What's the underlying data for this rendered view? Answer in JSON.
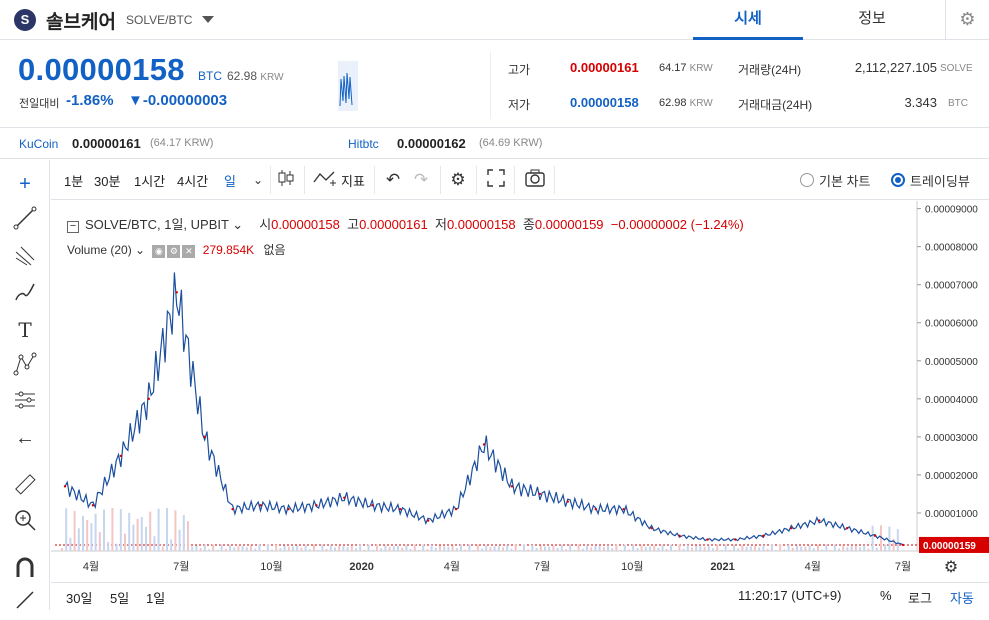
{
  "header": {
    "logo_letter": "S",
    "coin_name": "솔브케어",
    "pair": "SOLVE/BTC",
    "tabs": [
      "시세",
      "정보"
    ]
  },
  "price": {
    "current": "0.00000158",
    "unit": "BTC",
    "krw": "62.98",
    "krw_unit": "KRW",
    "change_label": "전일대비",
    "change_pct": "-1.86%",
    "change_abs": "▼-0.00000003"
  },
  "stats": {
    "high_label": "고가",
    "high_value": "0.00000161",
    "high_krw": "64.17",
    "low_label": "저가",
    "low_value": "0.00000158",
    "low_krw": "62.98",
    "krw_unit": "KRW",
    "volume_label": "거래량(24H)",
    "volume_value": "2,112,227.105",
    "volume_unit": "SOLVE",
    "amount_label": "거래대금(24H)",
    "amount_value": "3.343",
    "amount_unit": "BTC"
  },
  "exchanges": [
    {
      "name": "KuCoin",
      "price": "0.00000161",
      "krw": "(64.17 KRW)"
    },
    {
      "name": "Hitbtc",
      "price": "0.00000162",
      "krw": "(64.69 KRW)"
    }
  ],
  "toolbar": {
    "intervals": [
      "1분",
      "30분",
      "1시간",
      "4시간",
      "일"
    ],
    "indicator_label": "지표",
    "basic_chart": "기본 차트",
    "tradingview": "트레이딩뷰"
  },
  "legend": {
    "symbol": "SOLVE/BTC, 1일, UPBIT",
    "open_label": "시",
    "open": "0.00000158",
    "high_label": "고",
    "high": "0.00000161",
    "low_label": "저",
    "low": "0.00000158",
    "close_label": "종",
    "close": "0.00000159",
    "change": "−0.00000002 (−1.24%)",
    "volume_label": "Volume (20)",
    "volume_value": "279.854K",
    "volume_extra": "없음"
  },
  "chart_data": {
    "type": "line",
    "price_axis": [
      "0.00009000",
      "0.00008000",
      "0.00007000",
      "0.00006000",
      "0.00005000",
      "0.00004000",
      "0.00003000",
      "0.00002000",
      "0.00001000"
    ],
    "current_label": "0.00000159",
    "time_axis": [
      "4월",
      "7월",
      "10월",
      "2020",
      "4월",
      "7월",
      "10월",
      "2021",
      "4월",
      "7월"
    ],
    "x": [
      "2019-03",
      "2019-04",
      "2019-05",
      "2019-06",
      "2019-06b",
      "2019-07",
      "2019-08",
      "2019-09",
      "2019-10",
      "2019-11",
      "2019-12",
      "2020-01",
      "2020-02",
      "2020-03",
      "2020-04",
      "2020-05",
      "2020-05b",
      "2020-06",
      "2020-07",
      "2020-08",
      "2020-09",
      "2020-10",
      "2020-11",
      "2020-12",
      "2021-01",
      "2021-02",
      "2021-03",
      "2021-04",
      "2021-05",
      "2021-06",
      "2021-07"
    ],
    "y": [
      1.7e-05,
      1.2e-05,
      2.5e-05,
      4e-05,
      6.8e-05,
      3e-05,
      1.1e-05,
      1.2e-05,
      1.1e-05,
      1.2e-05,
      1.4e-05,
      1.2e-05,
      1.1e-05,
      8e-06,
      1.1e-05,
      2.8e-05,
      1.7e-05,
      1.5e-05,
      1.3e-05,
      1.1e-05,
      1.1e-05,
      6e-06,
      4e-06,
      3e-06,
      3e-06,
      4e-06,
      6e-06,
      8e-06,
      6e-06,
      4e-06,
      1.6e-06
    ],
    "ylim": [
      0,
      9.2e-05
    ]
  },
  "bottom": {
    "ranges": [
      "30일",
      "5일",
      "1일"
    ],
    "time": "11:20:17 (UTC+9)",
    "pct": "%",
    "log": "로그",
    "auto": "자동"
  }
}
